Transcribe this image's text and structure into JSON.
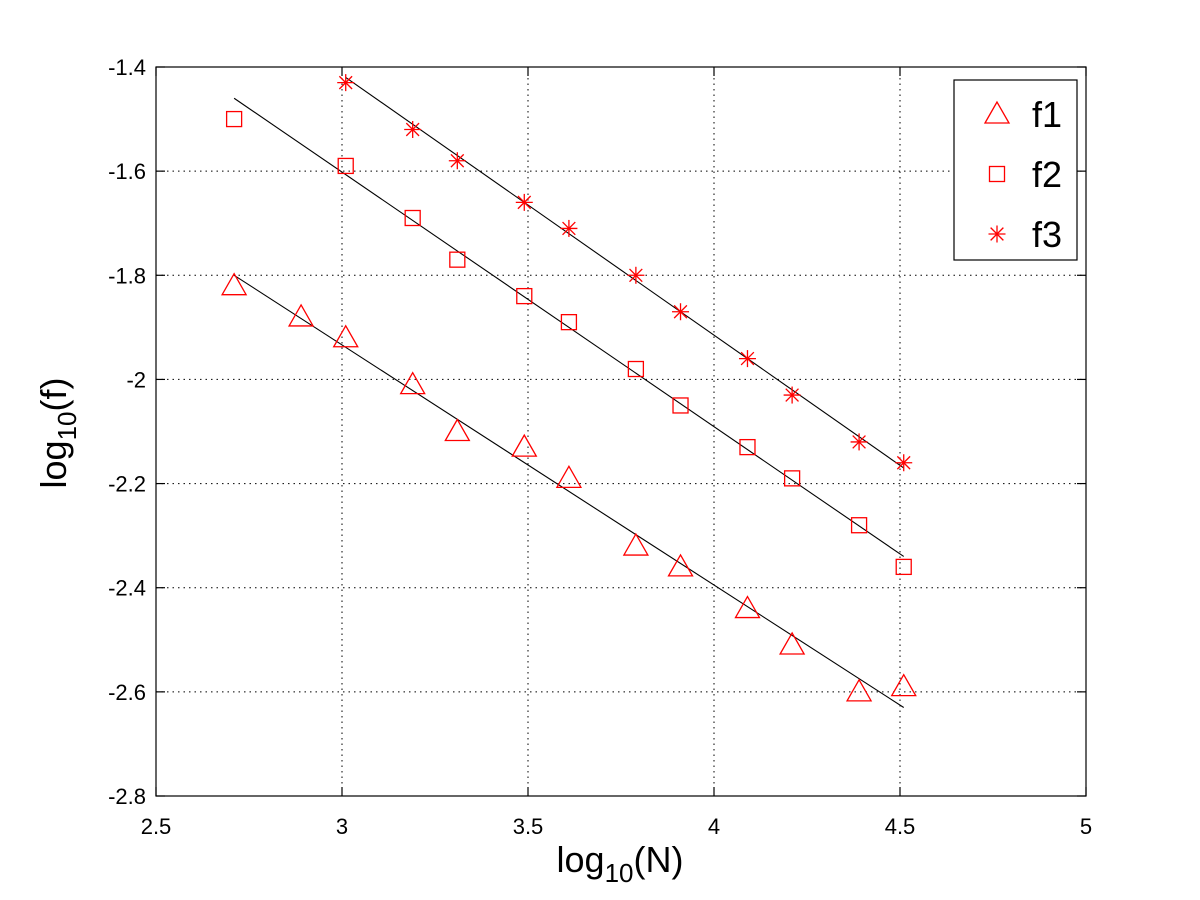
{
  "chart_data": {
    "type": "scatter",
    "title": "",
    "xlabel": {
      "base": "log",
      "sub": "10",
      "rest": "(N)"
    },
    "ylabel": {
      "base": "log",
      "sub": "10",
      "rest": "(f)"
    },
    "xlim": [
      2.5,
      5
    ],
    "ylim": [
      -2.8,
      -1.4
    ],
    "xticks": [
      2.5,
      3,
      3.5,
      4,
      4.5,
      5
    ],
    "xtick_labels": [
      "2.5",
      "3",
      "3.5",
      "4",
      "4.5",
      "5"
    ],
    "yticks": [
      -2.8,
      -2.6,
      -2.4,
      -2.2,
      -2.0,
      -1.8,
      -1.6,
      -1.4
    ],
    "ytick_labels": [
      "-2.8",
      "-2.6",
      "-2.4",
      "-2.2",
      "-2",
      "-1.8",
      "-1.6",
      "-1.4"
    ],
    "grid": true,
    "legend_position": "top-right",
    "marker_color": "#ff0000",
    "fit_line_color": "#000000",
    "series": [
      {
        "name": "f1",
        "marker": "triangle",
        "x": [
          2.71,
          2.89,
          3.01,
          3.19,
          3.31,
          3.49,
          3.61,
          3.79,
          3.91,
          4.09,
          4.21,
          4.39,
          4.51
        ],
        "y": [
          -1.82,
          -1.88,
          -1.92,
          -2.01,
          -2.1,
          -2.13,
          -2.19,
          -2.32,
          -2.36,
          -2.44,
          -2.51,
          -2.6,
          -2.59
        ],
        "fit": {
          "x": [
            2.71,
            4.51
          ],
          "y": [
            -1.8,
            -2.63
          ]
        }
      },
      {
        "name": "f2",
        "marker": "square",
        "x": [
          2.71,
          3.01,
          3.19,
          3.31,
          3.49,
          3.61,
          3.79,
          3.91,
          4.09,
          4.21,
          4.39,
          4.51
        ],
        "y": [
          -1.5,
          -1.59,
          -1.69,
          -1.77,
          -1.84,
          -1.89,
          -1.98,
          -2.05,
          -2.13,
          -2.19,
          -2.28,
          -2.36
        ],
        "fit": {
          "x": [
            2.71,
            4.51
          ],
          "y": [
            -1.46,
            -2.34
          ]
        }
      },
      {
        "name": "f3",
        "marker": "star",
        "x": [
          3.01,
          3.19,
          3.31,
          3.49,
          3.61,
          3.79,
          3.91,
          4.09,
          4.21,
          4.39,
          4.51
        ],
        "y": [
          -1.43,
          -1.52,
          -1.58,
          -1.66,
          -1.71,
          -1.8,
          -1.87,
          -1.96,
          -2.03,
          -2.12,
          -2.16
        ],
        "fit": {
          "x": [
            3.01,
            4.51
          ],
          "y": [
            -1.42,
            -2.17
          ]
        }
      }
    ]
  }
}
